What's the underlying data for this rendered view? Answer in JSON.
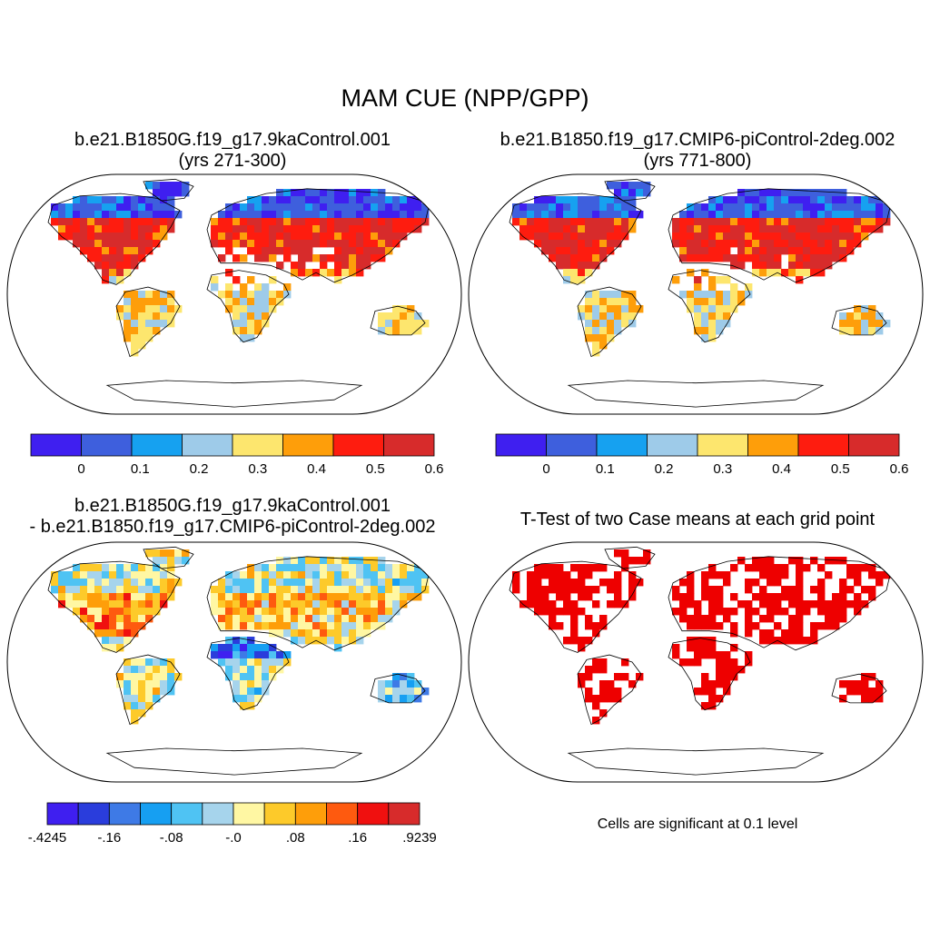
{
  "main_title": "MAM CUE (NPP/GPP)",
  "panels": [
    {
      "id": "p1",
      "title_line1": "b.e21.B1850G.f19_g17.9kaControl.001",
      "title_line2": "(yrs 271-300)"
    },
    {
      "id": "p2",
      "title_line1": "b.e21.B1850.f19_g17.CMIP6-piControl-2deg.002",
      "title_line2": "(yrs 771-800)"
    },
    {
      "id": "p3",
      "title_line1": "b.e21.B1850G.f19_g17.9kaControl.001",
      "title_line2": "- b.e21.B1850.f19_g17.CMIP6-piControl-2deg.002"
    },
    {
      "id": "p4",
      "title_line1": "T-Test of two Case means at each grid point"
    }
  ],
  "colorbar_abs": {
    "colors": [
      "#3f1ff0",
      "#3e5fdd",
      "#16a1f0",
      "#9ecbe9",
      "#fde66e",
      "#fe9e0a",
      "#fe1c0f",
      "#d72b2b"
    ],
    "labels": [
      "0",
      "0.1",
      "0.2",
      "0.3",
      "0.4",
      "0.5",
      "0.6"
    ]
  },
  "colorbar_diff": {
    "colors": [
      "#3f1ff0",
      "#2a3ddc",
      "#3e7ae6",
      "#169ff2",
      "#4fc3f3",
      "#a6d4ec",
      "#fff7a3",
      "#fdca2a",
      "#fe9e0a",
      "#fe5a0f",
      "#f0100f",
      "#d72b2b"
    ],
    "labels": [
      "-.4245",
      "-.16",
      "-.08",
      "-.0",
      ".08",
      ".16",
      ".9239"
    ]
  },
  "significance_color": "#ee0000",
  "significance_note": "Cells are significant at 0.1 level"
}
